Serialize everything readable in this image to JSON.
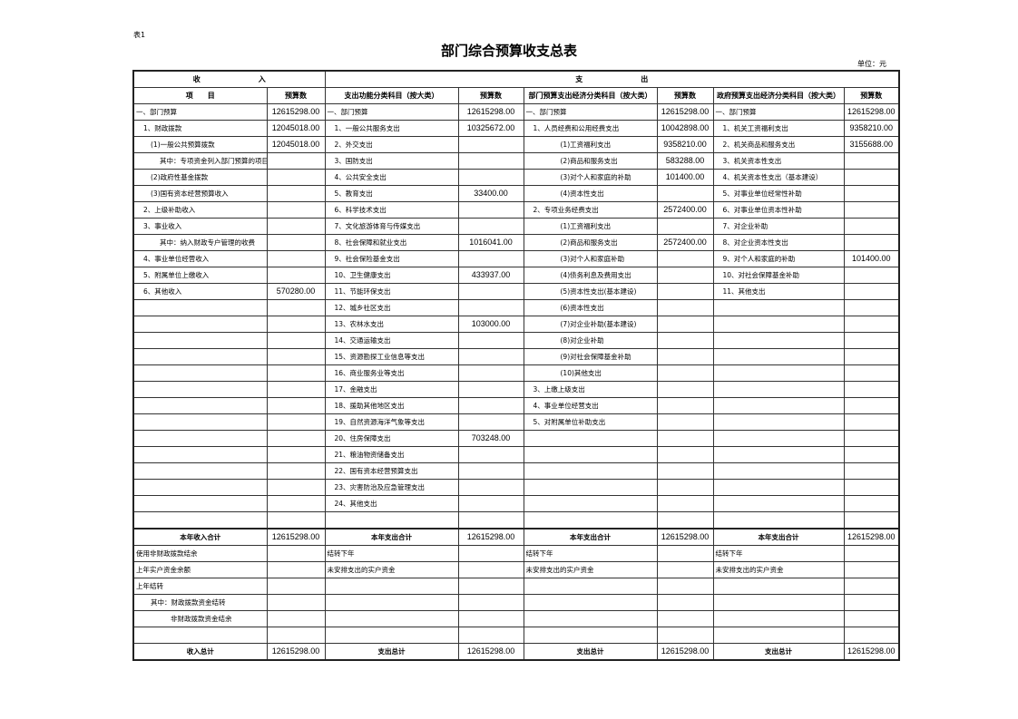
{
  "doc": {
    "table_no": "表1",
    "title": "部门综合预算收支总表",
    "unit": "单位：元"
  },
  "header": {
    "income_group": "收　　　　　　　　入",
    "expense_group": "支　　　　　　　　出",
    "columns": [
      "项　　目",
      "预算数",
      "支出功能分类科目（按大类）",
      "预算数",
      "部门预算支出经济分类科目（按大类）",
      "预算数",
      "政府预算支出经济分类科目（按大类）",
      "预算数"
    ]
  },
  "rows": [
    [
      "一、部门预算",
      "12615298.00",
      "一、部门预算",
      "12615298.00",
      "一、部门预算",
      "12615298.00",
      "一、部门预算",
      "12615298.00"
    ],
    [
      "1、财政拨款",
      "12045018.00",
      "1、一般公共服务支出",
      "10325672.00",
      "1、人员经费和公用经费支出",
      "10042898.00",
      "1、机关工资福利支出",
      "9358210.00"
    ],
    [
      "(1)一般公共预算拨款",
      "12045018.00",
      "2、外交支出",
      "",
      "(1)工资福利支出",
      "9358210.00",
      "2、机关商品和服务支出",
      "3155688.00"
    ],
    [
      "其中：专项资金列入部门预算的项目",
      "",
      "3、国防支出",
      "",
      "(2)商品和服务支出",
      "583288.00",
      "3、机关资本性支出",
      ""
    ],
    [
      "(2)政府性基金拨款",
      "",
      "4、公共安全支出",
      "",
      "(3)对个人和家庭的补助",
      "101400.00",
      "4、机关资本性支出（基本建设）",
      ""
    ],
    [
      "(3)国有资本经营预算收入",
      "",
      "5、教育支出",
      "33400.00",
      "(4)资本性支出",
      "",
      "5、对事业单位经常性补助",
      ""
    ],
    [
      "2、上级补助收入",
      "",
      "6、科学技术支出",
      "",
      "2、专项业务经费支出",
      "2572400.00",
      "6、对事业单位资本性补助",
      ""
    ],
    [
      "3、事业收入",
      "",
      "7、文化旅游体育与传媒支出",
      "",
      "(1)工资福利支出",
      "",
      "7、对企业补助",
      ""
    ],
    [
      "其中：纳入财政专户管理的收费",
      "",
      "8、社会保障和就业支出",
      "1016041.00",
      "(2)商品和服务支出",
      "2572400.00",
      "8、对企业资本性支出",
      ""
    ],
    [
      "4、事业单位经营收入",
      "",
      "9、社会保险基金支出",
      "",
      "(3)对个人和家庭补助",
      "",
      "9、对个人和家庭的补助",
      "101400.00"
    ],
    [
      "5、附属单位上缴收入",
      "",
      "10、卫生健康支出",
      "433937.00",
      "(4)债务利息及费用支出",
      "",
      "10、对社会保障基金补助",
      ""
    ],
    [
      "6、其他收入",
      "570280.00",
      "11、节能环保支出",
      "",
      "(5)资本性支出(基本建设)",
      "",
      "11、其他支出",
      ""
    ],
    [
      "",
      "",
      "12、城乡社区支出",
      "",
      "(6)资本性支出",
      "",
      "",
      ""
    ],
    [
      "",
      "",
      "13、农林水支出",
      "103000.00",
      "(7)对企业补助(基本建设)",
      "",
      "",
      ""
    ],
    [
      "",
      "",
      "14、交通运输支出",
      "",
      "(8)对企业补助",
      "",
      "",
      ""
    ],
    [
      "",
      "",
      "15、资源勘探工业信息等支出",
      "",
      "(9)对社会保障基金补助",
      "",
      "",
      ""
    ],
    [
      "",
      "",
      "16、商业服务业等支出",
      "",
      "(10)其他支出",
      "",
      "",
      ""
    ],
    [
      "",
      "",
      "17、金融支出",
      "",
      "3、上缴上级支出",
      "",
      "",
      ""
    ],
    [
      "",
      "",
      "18、援助其他地区支出",
      "",
      "4、事业单位经营支出",
      "",
      "",
      ""
    ],
    [
      "",
      "",
      "19、自然资源海洋气象等支出",
      "",
      "5、对附属单位补助支出",
      "",
      "",
      ""
    ],
    [
      "",
      "",
      "20、住房保障支出",
      "703248.00",
      "",
      "",
      "",
      ""
    ],
    [
      "",
      "",
      "21、粮油物资储备支出",
      "",
      "",
      "",
      "",
      ""
    ],
    [
      "",
      "",
      "22、国有资本经营预算支出",
      "",
      "",
      "",
      "",
      ""
    ],
    [
      "",
      "",
      "23、灾害防治及应急管理支出",
      "",
      "",
      "",
      "",
      ""
    ],
    [
      "",
      "",
      "24、其他支出",
      "",
      "",
      "",
      "",
      ""
    ],
    [
      "",
      "",
      "",
      "",
      "",
      "",
      "",
      ""
    ],
    [
      "本年收入合计",
      "12615298.00",
      "本年支出合计",
      "12615298.00",
      "本年支出合计",
      "12615298.00",
      "本年支出合计",
      "12615298.00"
    ],
    [
      "使用非财政拨款结余",
      "",
      "结转下年",
      "",
      "结转下年",
      "",
      "结转下年",
      ""
    ],
    [
      "上年实户资金余额",
      "",
      "未安排支出的实户资金",
      "",
      "未安排支出的实户资金",
      "",
      "未安排支出的实户资金",
      ""
    ],
    [
      "上年结转",
      "",
      "",
      "",
      "",
      "",
      "",
      ""
    ],
    [
      "其中：财政拨款资金结转",
      "",
      "",
      "",
      "",
      "",
      "",
      ""
    ],
    [
      "非财政拨款资金结余",
      "",
      "",
      "",
      "",
      "",
      "",
      ""
    ],
    [
      "",
      "",
      "",
      "",
      "",
      "",
      "",
      ""
    ],
    [
      "收入总计",
      "12615298.00",
      "支出总计",
      "12615298.00",
      "支出总计",
      "12615298.00",
      "支出总计",
      "12615298.00"
    ]
  ]
}
